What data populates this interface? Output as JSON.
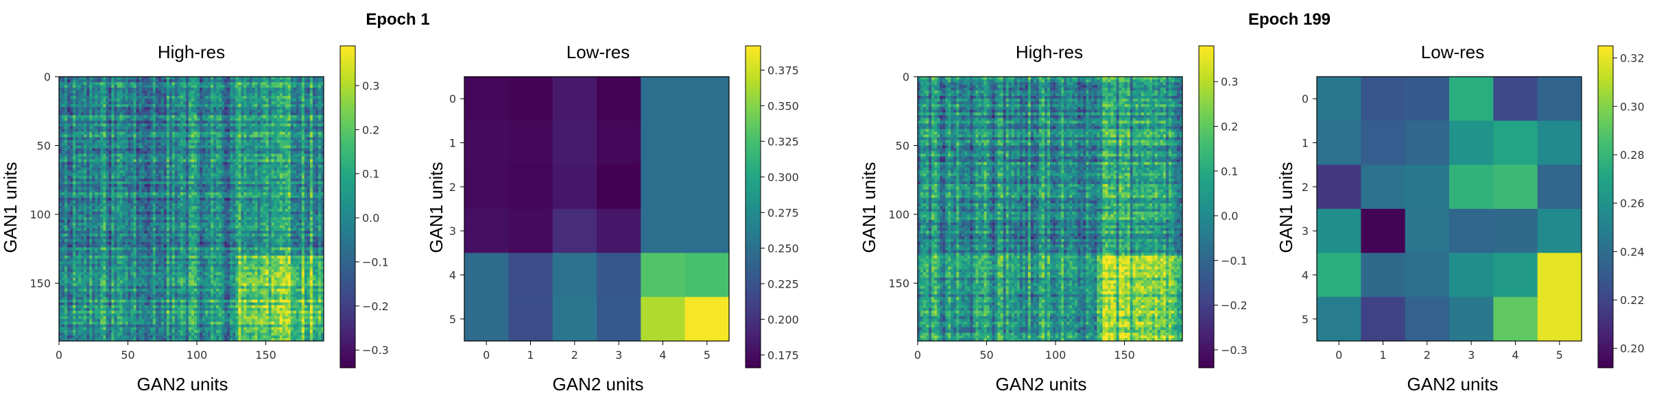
{
  "figure": {
    "epochs": [
      {
        "title": "Epoch 1",
        "panels": [
          {
            "title": "High-res",
            "kind": "noise",
            "n": 192,
            "seed": 11,
            "split": 130,
            "xlabel": "GAN2 units",
            "ylabel": "GAN1 units",
            "xticks": [
              0,
              50,
              100,
              150
            ],
            "yticks": [
              0,
              50,
              100,
              150
            ],
            "cbar_ticks": [
              -0.3,
              -0.2,
              -0.1,
              0.0,
              0.1,
              0.2,
              0.3
            ],
            "cbar_labels": [
              "−0.3",
              "−0.2",
              "−0.1",
              "0.0",
              "0.1",
              "0.2",
              "0.3"
            ],
            "vmin": -0.34,
            "vmax": 0.39
          },
          {
            "title": "Low-res",
            "kind": "grid",
            "xlabel": "GAN2 units",
            "ylabel": "GAN1 units",
            "xticks": [
              0,
              1,
              2,
              3,
              4,
              5
            ],
            "yticks": [
              0,
              1,
              2,
              3,
              4,
              5
            ],
            "cbar_ticks": [
              0.175,
              0.2,
              0.225,
              0.25,
              0.275,
              0.3,
              0.325,
              0.35,
              0.375
            ],
            "cbar_labels": [
              "0.175",
              "0.200",
              "0.225",
              "0.250",
              "0.275",
              "0.300",
              "0.325",
              "0.350",
              "0.375"
            ],
            "vmin": 0.166,
            "vmax": 0.392
          }
        ]
      },
      {
        "title": "Epoch 199",
        "panels": [
          {
            "title": "High-res",
            "kind": "noise",
            "n": 192,
            "seed": 29,
            "split": 130,
            "xlabel": "GAN2 units",
            "ylabel": "GAN1 units",
            "xticks": [
              0,
              50,
              100,
              150
            ],
            "yticks": [
              0,
              50,
              100,
              150
            ],
            "cbar_ticks": [
              -0.3,
              -0.2,
              -0.1,
              0.0,
              0.1,
              0.2,
              0.3
            ],
            "cbar_labels": [
              "−0.3",
              "−0.2",
              "−0.1",
              "0.0",
              "0.1",
              "0.2",
              "0.3"
            ],
            "vmin": -0.34,
            "vmax": 0.38
          },
          {
            "title": "Low-res",
            "kind": "grid",
            "xlabel": "GAN2 units",
            "ylabel": "GAN1 units",
            "xticks": [
              0,
              1,
              2,
              3,
              4,
              5
            ],
            "yticks": [
              0,
              1,
              2,
              3,
              4,
              5
            ],
            "cbar_ticks": [
              0.2,
              0.22,
              0.24,
              0.26,
              0.28,
              0.3,
              0.32
            ],
            "cbar_labels": [
              "0.20",
              "0.22",
              "0.24",
              "0.26",
              "0.28",
              "0.30",
              "0.32"
            ],
            "vmin": 0.192,
            "vmax": 0.325
          }
        ]
      }
    ]
  },
  "chart_data": [
    {
      "type": "heatmap",
      "title": "High-res",
      "suptitle": "Epoch 1",
      "xlabel": "GAN2 units",
      "ylabel": "GAN1 units",
      "xlim": [
        0,
        192
      ],
      "ylim": [
        192,
        0
      ],
      "colormap": "viridis",
      "vrange": [
        -0.34,
        0.39
      ],
      "note": "192x192 correlation matrix; columns/rows above ~130 reach the highest values"
    },
    {
      "type": "heatmap",
      "title": "Low-res",
      "suptitle": "Epoch 1",
      "xlabel": "GAN2 units",
      "ylabel": "GAN1 units",
      "colormap": "viridis",
      "vrange": [
        0.166,
        0.392
      ],
      "rows": [
        0,
        1,
        2,
        3,
        4,
        5
      ],
      "cols": [
        0,
        1,
        2,
        3,
        4,
        5
      ],
      "values": [
        [
          0.17,
          0.167,
          0.182,
          0.167,
          0.248,
          0.248
        ],
        [
          0.173,
          0.17,
          0.183,
          0.17,
          0.248,
          0.248
        ],
        [
          0.172,
          0.168,
          0.18,
          0.166,
          0.248,
          0.248
        ],
        [
          0.176,
          0.172,
          0.195,
          0.18,
          0.248,
          0.248
        ],
        [
          0.245,
          0.22,
          0.25,
          0.228,
          0.33,
          0.325
        ],
        [
          0.245,
          0.22,
          0.255,
          0.23,
          0.365,
          0.39
        ]
      ]
    },
    {
      "type": "heatmap",
      "title": "High-res",
      "suptitle": "Epoch 199",
      "xlabel": "GAN2 units",
      "ylabel": "GAN1 units",
      "xlim": [
        0,
        192
      ],
      "ylim": [
        192,
        0
      ],
      "colormap": "viridis",
      "vrange": [
        -0.34,
        0.38
      ],
      "note": "192x192 correlation matrix; values near 0 with brighter band at rows/cols above ~130"
    },
    {
      "type": "heatmap",
      "title": "Low-res",
      "suptitle": "Epoch 199",
      "xlabel": "GAN2 units",
      "ylabel": "GAN1 units",
      "colormap": "viridis",
      "vrange": [
        0.192,
        0.325
      ],
      "rows": [
        0,
        1,
        2,
        3,
        4,
        5
      ],
      "cols": [
        0,
        1,
        2,
        3,
        4,
        5
      ],
      "values": [
        [
          0.246,
          0.228,
          0.23,
          0.275,
          0.222,
          0.235
        ],
        [
          0.242,
          0.232,
          0.236,
          0.26,
          0.27,
          0.255
        ],
        [
          0.214,
          0.242,
          0.246,
          0.278,
          0.282,
          0.236
        ],
        [
          0.258,
          0.193,
          0.244,
          0.236,
          0.238,
          0.255
        ],
        [
          0.275,
          0.238,
          0.24,
          0.258,
          0.265,
          0.32
        ],
        [
          0.248,
          0.218,
          0.234,
          0.245,
          0.292,
          0.32
        ]
      ]
    }
  ]
}
